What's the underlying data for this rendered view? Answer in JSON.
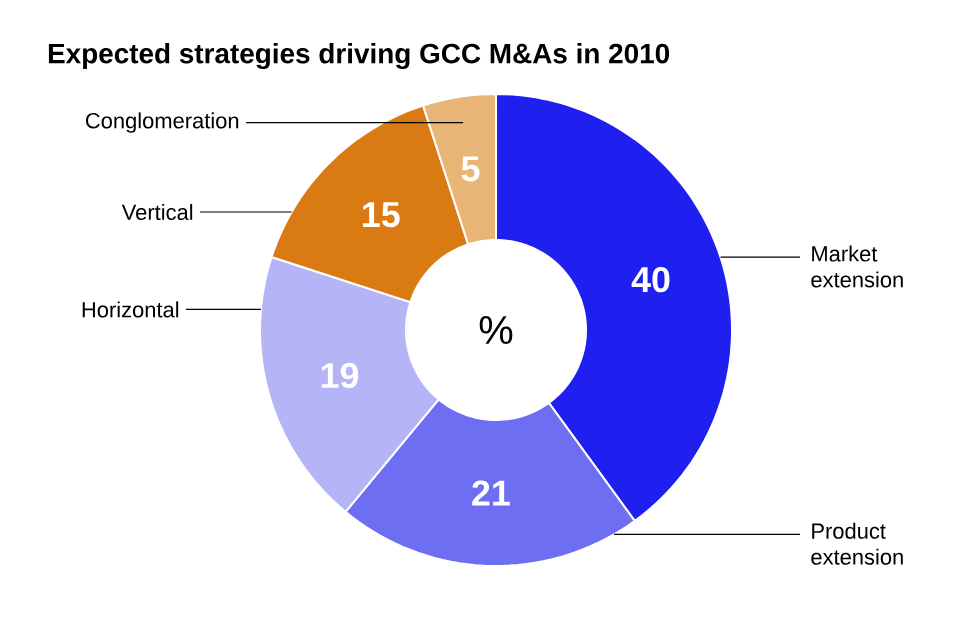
{
  "chart_data": {
    "type": "donut",
    "title": "Expected strategies driving GCC M&As in 2010",
    "categories": [
      "Market extension",
      "Product extension",
      "Horizontal",
      "Vertical",
      "Conglomeration"
    ],
    "values": [
      40,
      21,
      19,
      15,
      5
    ],
    "colors": [
      "#1f1ff0",
      "#6e6ef2",
      "#b4b4f6",
      "#d97a12",
      "#e9b577"
    ],
    "data_labels": true,
    "annotations": [
      "%"
    ]
  }
}
